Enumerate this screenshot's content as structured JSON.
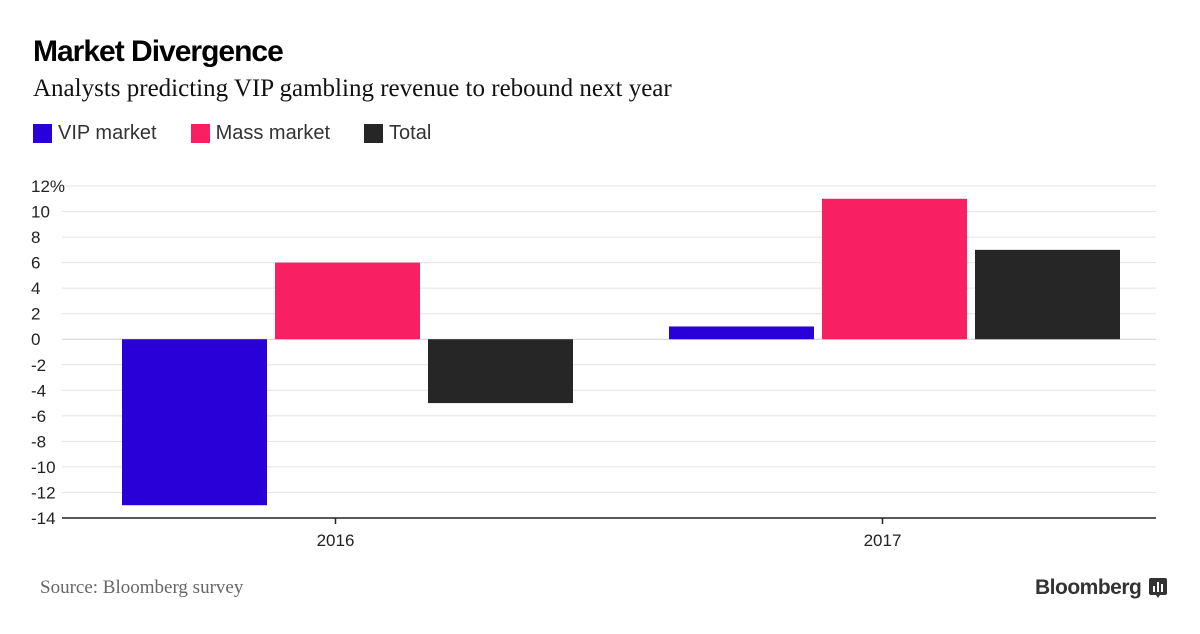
{
  "header": {
    "title": "Market Divergence",
    "subtitle": "Analysts predicting VIP gambling revenue to rebound next year"
  },
  "legend": [
    {
      "label": "VIP market",
      "color": "#2a00d9"
    },
    {
      "label": "Mass market",
      "color": "#f91f63"
    },
    {
      "label": "Total",
      "color": "#262626"
    }
  ],
  "footer": {
    "source": "Source: Bloomberg survey",
    "brand": "Bloomberg",
    "brand_icon": "bloomberg-terminal-icon"
  },
  "chart_data": {
    "type": "bar",
    "categories": [
      "2016",
      "2017"
    ],
    "series": [
      {
        "name": "VIP market",
        "values": [
          -13,
          1
        ],
        "color": "#2a00d9"
      },
      {
        "name": "Mass market",
        "values": [
          6,
          11
        ],
        "color": "#f91f63"
      },
      {
        "name": "Total",
        "values": [
          -5,
          7
        ],
        "color": "#262626"
      }
    ],
    "ylim": [
      -14,
      12
    ],
    "yticks": [
      12,
      10,
      8,
      6,
      4,
      2,
      0,
      -2,
      -4,
      -6,
      -8,
      -10,
      -12,
      -14
    ],
    "ytick_labels": [
      "12%",
      "10",
      "8",
      "6",
      "4",
      "2",
      "0",
      "-2",
      "-4",
      "-6",
      "-8",
      "-10",
      "-12",
      "-14"
    ],
    "grid": true,
    "legend_position": "top-left"
  }
}
